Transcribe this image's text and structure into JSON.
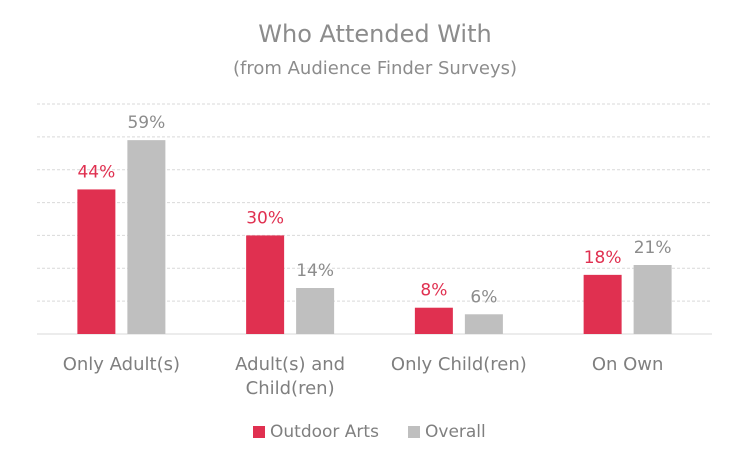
{
  "chart_data": {
    "type": "bar",
    "title": "Who Attended With",
    "subtitle": "(from Audience Finder Surveys)",
    "categories": [
      [
        "Only Adult(s)"
      ],
      [
        "Adult(s) and",
        "Child(ren)"
      ],
      [
        "Only Child(ren)"
      ],
      [
        "On Own"
      ]
    ],
    "series": [
      {
        "name": "Outdoor Arts",
        "values": [
          44,
          30,
          8,
          18
        ],
        "labels": [
          "44%",
          "30%",
          "8%",
          "18%"
        ],
        "color": "#e03050"
      },
      {
        "name": "Overall",
        "values": [
          59,
          14,
          6,
          21
        ],
        "labels": [
          "59%",
          "14%",
          "6%",
          "21%"
        ],
        "color": "#bfbfbf"
      }
    ],
    "ylim": [
      0,
      70
    ],
    "grid": true,
    "legend_position": "bottom",
    "label_colors": [
      "#e03050",
      "#8c8c8c"
    ]
  }
}
